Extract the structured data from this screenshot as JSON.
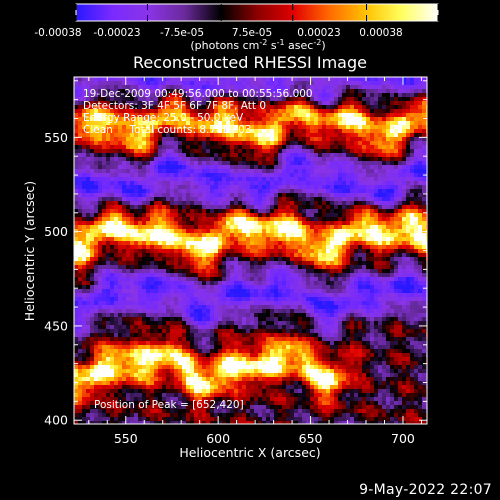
{
  "chart_data": {
    "type": "heatmap",
    "title": "Reconstructed RHESSI Image",
    "xlabel": "Heliocentric X (arcsec)",
    "ylabel": "Heliocentric Y (arcsec)",
    "xlim": [
      522,
      713
    ],
    "ylim": [
      398,
      582
    ],
    "xticks": [
      550,
      600,
      650,
      700
    ],
    "yticks": [
      400,
      450,
      500,
      550
    ],
    "colorbar": {
      "min": -0.00038,
      "max": 0.00038,
      "ticks": [
        "-0.00038",
        "-0.00023",
        "-7.5e-05",
        "7.5e-05",
        "0.00023",
        "0.00038"
      ],
      "label": "(photons cm-2 s-1 asec-2)",
      "colormap": "RHESSI color table: blue - purple - black - red - orange - yellow - white",
      "colors": [
        "#2a18ff",
        "#7a2aff",
        "#8a34e6",
        "#6a2a9a",
        "#000000",
        "#8c0000",
        "#e10000",
        "#ff6a00",
        "#ffc200",
        "#ffff60",
        "#ffffff"
      ]
    },
    "features": [
      {
        "region": "bright band",
        "y_center": 428,
        "x_range": [
          522,
          660
        ],
        "relative_intensity": 0.95
      },
      {
        "region": "bright band",
        "y_center": 498,
        "x_range": [
          522,
          713
        ],
        "relative_intensity": 0.95
      },
      {
        "region": "bright band",
        "y_center": 558,
        "x_range": [
          522,
          713
        ],
        "relative_intensity": 0.85
      },
      {
        "region": "negative band",
        "y_center": 466,
        "x_range": [
          522,
          713
        ],
        "relative_intensity": -0.8
      },
      {
        "region": "negative band",
        "y_center": 527,
        "x_range": [
          522,
          713
        ],
        "relative_intensity": -0.8
      },
      {
        "region": "negative band",
        "y_center": 580,
        "x_range": [
          522,
          713
        ],
        "relative_intensity": -0.7
      }
    ],
    "peak": {
      "x": 652,
      "y": 420
    },
    "annotations": [
      "19-Dec-2009 00:49:56.000 to 00:55:56.000",
      "Detectors: 3F 4F 5F 6F 7F 8F, Att 0",
      "Energy Range: 25.0 - 50.0 keV",
      "Clean     Total counts: 8.78E+03",
      "Position of Peak = [652,420]"
    ]
  },
  "footer_stamp": "9-May-2022 22:07"
}
